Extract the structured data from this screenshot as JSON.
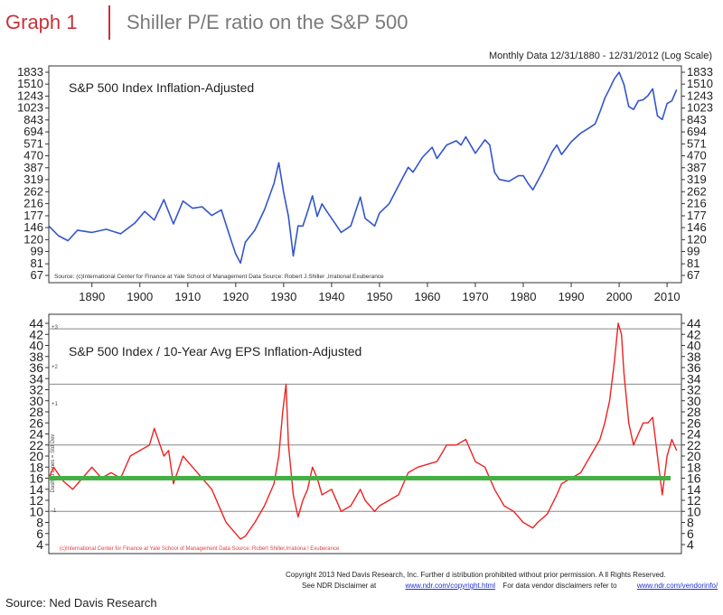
{
  "header": {
    "graph_label": "Graph 1",
    "title": "Shiller P/E ratio on the S&P 500",
    "subtitle": "Monthly Data 12/31/1880 - 12/31/2012 (Log Scale)"
  },
  "chart_data": [
    {
      "type": "line",
      "title": "S&P 500 Index Inflation-Adjusted",
      "scale": "log",
      "ylim": [
        67,
        1833
      ],
      "xlim": [
        1881,
        2013
      ],
      "yticks": [
        67,
        81,
        99,
        120,
        146,
        177,
        216,
        262,
        319,
        387,
        470,
        571,
        694,
        843,
        1023,
        1243,
        1510,
        1833
      ],
      "xticks": [
        1890,
        1900,
        1910,
        1920,
        1930,
        1940,
        1950,
        1960,
        1970,
        1980,
        1990,
        2000,
        2010
      ],
      "source_note": "Source: (c)International Center for Finance at Yale       School of Management Data Source: Robert J.Shiller         ,Irrational Exuberance",
      "color": "#3355cc",
      "series": [
        {
          "x": [
            1881,
            1883,
            1885,
            1887,
            1890,
            1893,
            1896,
            1899,
            1901,
            1903,
            1905,
            1907,
            1909,
            1911,
            1913,
            1915,
            1917,
            1919,
            1920,
            1921,
            1922,
            1924,
            1926,
            1928,
            1929,
            1930,
            1931,
            1932,
            1933,
            1934,
            1935,
            1936,
            1937,
            1938,
            1939,
            1940,
            1942,
            1944,
            1946,
            1947,
            1949,
            1950,
            1952,
            1954,
            1956,
            1957,
            1959,
            1961,
            1962,
            1964,
            1966,
            1967,
            1968,
            1970,
            1972,
            1973,
            1974,
            1975,
            1977,
            1979,
            1980,
            1981,
            1982,
            1984,
            1986,
            1987,
            1988,
            1990,
            1992,
            1994,
            1995,
            1996,
            1997,
            1998,
            1999,
            2000,
            2001,
            2002,
            2003,
            2004,
            2005,
            2006,
            2007,
            2008,
            2009,
            2010,
            2011,
            2012
          ],
          "y": [
            150,
            128,
            118,
            140,
            135,
            142,
            132,
            158,
            190,
            165,
            230,
            155,
            225,
            200,
            205,
            178,
            195,
            120,
            95,
            82,
            115,
            140,
            195,
            300,
            420,
            260,
            175,
            92,
            150,
            150,
            190,
            245,
            175,
            215,
            190,
            170,
            135,
            150,
            240,
            170,
            150,
            185,
            215,
            290,
            390,
            360,
            460,
            540,
            450,
            560,
            600,
            560,
            640,
            490,
            610,
            560,
            360,
            320,
            310,
            340,
            340,
            300,
            270,
            360,
            500,
            560,
            480,
            590,
            680,
            750,
            790,
            960,
            1200,
            1400,
            1650,
            1833,
            1500,
            1050,
            1000,
            1150,
            1170,
            1250,
            1400,
            900,
            850,
            1100,
            1150,
            1380
          ]
        }
      ]
    },
    {
      "type": "line",
      "title": "S&P 500 Index / 10-Year Avg EPS Inflation-Adjusted",
      "scale": "linear",
      "ylim": [
        4,
        44
      ],
      "xlim": [
        1881,
        2013
      ],
      "yticks": [
        4,
        6,
        8,
        10,
        12,
        14,
        16,
        18,
        20,
        22,
        24,
        26,
        28,
        30,
        32,
        34,
        36,
        38,
        40,
        42,
        44
      ],
      "left_axis_label": "Dashed Lines = Std Dev",
      "std_labels": [
        "+3",
        "+2",
        "+1",
        "-1"
      ],
      "source_note": "(c)International Center for Finance at Yale School       of Management Data Source: Robert Shiller,Irrationa          l Exuberance",
      "reference_line": 16,
      "gridlines": [
        10,
        22,
        33,
        43
      ],
      "color": "#ee2222",
      "reference_color": "#44b044",
      "series": [
        {
          "x": [
            1881,
            1882,
            1884,
            1886,
            1888,
            1890,
            1892,
            1894,
            1896,
            1898,
            1900,
            1902,
            1903,
            1905,
            1906,
            1907,
            1909,
            1911,
            1913,
            1915,
            1917,
            1918,
            1920,
            1921,
            1922,
            1924,
            1926,
            1928,
            1929,
            1929.8,
            1930.5,
            1931,
            1932,
            1933,
            1934,
            1935,
            1936,
            1937,
            1938,
            1940,
            1942,
            1944,
            1946,
            1947,
            1949,
            1950,
            1952,
            1954,
            1956,
            1958,
            1960,
            1962,
            1964,
            1966,
            1968,
            1970,
            1972,
            1974,
            1976,
            1978,
            1980,
            1982,
            1983,
            1985,
            1987,
            1988,
            1990,
            1992,
            1994,
            1996,
            1997,
            1998,
            1999,
            1999.8,
            2000.5,
            2001,
            2002,
            2003,
            2004,
            2005,
            2006,
            2007,
            2008,
            2009,
            2010,
            2011,
            2012
          ],
          "y": [
            16,
            18,
            15.5,
            14,
            16,
            18,
            16,
            17,
            16,
            20,
            21,
            22,
            25,
            20,
            21,
            15,
            20,
            18,
            16,
            14,
            10,
            8,
            6,
            5,
            5.5,
            8,
            11,
            15,
            20,
            28,
            33,
            22,
            13,
            9,
            12,
            14,
            18,
            16,
            13,
            14,
            10,
            11,
            14,
            12,
            10,
            11,
            12,
            13,
            17,
            18,
            18.5,
            19,
            22,
            22,
            23,
            19,
            18,
            14,
            11,
            10,
            8,
            7,
            8,
            9.5,
            13,
            15,
            16,
            17,
            20,
            23,
            26,
            30,
            37,
            44,
            42,
            35,
            26,
            22,
            24,
            26,
            26,
            27,
            20,
            13,
            20,
            23,
            21
          ]
        }
      ]
    }
  ],
  "footer": {
    "copyright": "Copyright 2013 Ned Davis Research, Inc. Further d      istribution prohibited without prior permission. A  ll Rights Reserved.",
    "disclaimer_prefix": "See NDR Disclaimer at",
    "disclaimer_link": "www.ndr.com/copyright.html",
    "vendor_text": "For data vendor disclaimers refer to",
    "vendor_link": "www.ndr.com/vendorinfo/"
  },
  "source": "Source: Ned Davis Research"
}
